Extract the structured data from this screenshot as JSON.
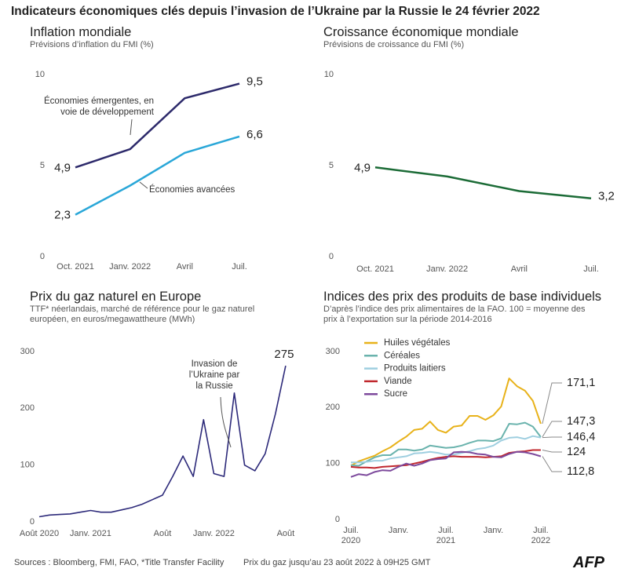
{
  "title": "Indicateurs économiques clés depuis l’invasion de l’Ukraine par la Russie le 24 février 2022",
  "sources": "Sources : Bloomberg, FMI, FAO, *Title Transfer Facility",
  "note": "Prix du gaz jusqu’au 23 août 2022 à 09H25 GMT",
  "logo": "AFP",
  "chart_data": [
    {
      "type": "line",
      "title": "Inflation mondiale",
      "subtitle": "Prévisions d’inflation du FMI (%)",
      "categories": [
        "Oct. 2021",
        "Janv. 2022",
        "Avril",
        "Juil."
      ],
      "ylim": [
        0,
        10
      ],
      "yticks": [
        0,
        5,
        10
      ],
      "series": [
        {
          "name": "Économies émergentes, en voie de développement",
          "color": "#2d2a6b",
          "values": [
            4.9,
            5.9,
            8.7,
            9.5
          ],
          "value_labels": [
            "4,9",
            null,
            null,
            "9,5"
          ]
        },
        {
          "name": "Économies avancées",
          "color": "#2aa7d8",
          "values": [
            2.3,
            3.9,
            5.7,
            6.6
          ],
          "value_labels": [
            "2,3",
            null,
            null,
            "6,6"
          ]
        }
      ]
    },
    {
      "type": "line",
      "title": "Croissance économique mondiale",
      "subtitle": "Prévisions de croissance du FMI (%)",
      "categories": [
        "Oct. 2021",
        "Janv. 2022",
        "Avril",
        "Juil."
      ],
      "ylim": [
        0,
        10
      ],
      "yticks": [
        0,
        5,
        10
      ],
      "series": [
        {
          "color": "#1b6b36",
          "values": [
            4.9,
            4.4,
            3.6,
            3.2
          ],
          "value_labels": [
            "4,9",
            null,
            null,
            "3,2"
          ]
        }
      ]
    },
    {
      "type": "line",
      "title": "Prix du gaz naturel en Europe",
      "subtitle": "TTF* néerlandais, marché de référence pour le gaz naturel européen, en euros/megawattheure (MWh)",
      "annotation": "Invasion de l’Ukraine par la Russie",
      "x": [
        "2020-08",
        "2020-09",
        "2020-10",
        "2020-11",
        "2020-12",
        "2021-01",
        "2021-02",
        "2021-03",
        "2021-04",
        "2021-05",
        "2021-06",
        "2021-07",
        "2021-08",
        "2021-09",
        "2021-10",
        "2021-11",
        "2021-12",
        "2022-01",
        "2022-02",
        "2022-03",
        "2022-04",
        "2022-05",
        "2022-06",
        "2022-07",
        "2022-08"
      ],
      "values": [
        9,
        12,
        13,
        14,
        17,
        20,
        17,
        17,
        21,
        25,
        31,
        39,
        47,
        80,
        116,
        80,
        180,
        85,
        80,
        227,
        100,
        90,
        120,
        190,
        275
      ],
      "color": "#2d2a7a",
      "ylim": [
        0,
        300
      ],
      "yticks": [
        0,
        100,
        200,
        300
      ],
      "xticks": [
        {
          "value": "2020-08",
          "label": "Août 2020"
        },
        {
          "value": "2021-01",
          "label": "Janv. 2021"
        },
        {
          "value": "2021-08",
          "label": "Août"
        },
        {
          "value": "2022-01",
          "label": "Janv. 2022"
        },
        {
          "value": "2022-08",
          "label": "Août"
        }
      ]
    },
    {
      "type": "line",
      "title": "Indices des prix des produits de base individuels",
      "subtitle": "D’après l’indice des prix alimentaires de la FAO. 100 = moyenne des prix à l’exportation sur la période 2014-2016",
      "x": [
        "2020-07",
        "2020-08",
        "2020-09",
        "2020-10",
        "2020-11",
        "2020-12",
        "2021-01",
        "2021-02",
        "2021-03",
        "2021-04",
        "2021-05",
        "2021-06",
        "2021-07",
        "2021-08",
        "2021-09",
        "2021-10",
        "2021-11",
        "2021-12",
        "2022-01",
        "2022-02",
        "2022-03",
        "2022-04",
        "2022-05",
        "2022-06",
        "2022-07"
      ],
      "ylim": [
        0,
        300
      ],
      "yticks": [
        0,
        100,
        200,
        300
      ],
      "xticks": [
        {
          "value": "2020-07",
          "label": "Juil. 2020"
        },
        {
          "value": "2021-01",
          "label": "Janv."
        },
        {
          "value": "2021-07",
          "label": "Juil. 2021"
        },
        {
          "value": "2022-01",
          "label": "Janv."
        },
        {
          "value": "2022-07",
          "label": "Juil. 2022"
        }
      ],
      "series": [
        {
          "name": "Huiles végétales",
          "color": "#e8b21a",
          "values": [
            96,
            104,
            109,
            114,
            122,
            129,
            139,
            148,
            160,
            162,
            175,
            160,
            155,
            166,
            168,
            185,
            185,
            178,
            186,
            202,
            252,
            238,
            230,
            212,
            171.1
          ],
          "value_labels": [
            null,
            null,
            null,
            null,
            null,
            null,
            null,
            null,
            null,
            null,
            null,
            null,
            null,
            null,
            null,
            null,
            null,
            null,
            null,
            null,
            null,
            null,
            null,
            null,
            "171,1"
          ]
        },
        {
          "name": "Céréales",
          "color": "#6ab3ad",
          "values": [
            97,
            96,
            104,
            111,
            115,
            115,
            125,
            125,
            123,
            125,
            132,
            130,
            128,
            129,
            132,
            137,
            141,
            141,
            140,
            145,
            171,
            170,
            173,
            166,
            147.3
          ],
          "value_labels": [
            null,
            null,
            null,
            null,
            null,
            null,
            null,
            null,
            null,
            null,
            null,
            null,
            null,
            null,
            null,
            null,
            null,
            null,
            null,
            null,
            null,
            null,
            null,
            null,
            "147,3"
          ]
        },
        {
          "name": "Produits laitiers",
          "color": "#9fcfe0",
          "values": [
            102,
            102,
            103,
            105,
            105,
            109,
            111,
            113,
            118,
            119,
            121,
            119,
            116,
            116,
            119,
            122,
            126,
            128,
            132,
            141,
            146,
            147,
            144,
            149,
            146.4
          ],
          "value_labels": [
            null,
            null,
            null,
            null,
            null,
            null,
            null,
            null,
            null,
            null,
            null,
            null,
            null,
            null,
            null,
            null,
            null,
            null,
            null,
            null,
            null,
            null,
            null,
            null,
            "146,4"
          ]
        },
        {
          "name": "Viande",
          "color": "#c0272d",
          "values": [
            94,
            93,
            93,
            92,
            94,
            95,
            96,
            97,
            100,
            103,
            107,
            110,
            112,
            113,
            112,
            112,
            112,
            111,
            112,
            113,
            119,
            121,
            122,
            124,
            124
          ]
        },
        {
          "name": "Sucre",
          "color": "#7d4a9c",
          "values": [
            76,
            81,
            79,
            85,
            88,
            87,
            94,
            100,
            96,
            100,
            106,
            108,
            109,
            120,
            121,
            120,
            117,
            116,
            112,
            111,
            117,
            121,
            120,
            117,
            112.8
          ],
          "value_labels": [
            null,
            null,
            null,
            null,
            null,
            null,
            null,
            null,
            null,
            null,
            null,
            null,
            null,
            null,
            null,
            null,
            null,
            null,
            null,
            null,
            null,
            null,
            null,
            null,
            "112,8"
          ]
        }
      ]
    }
  ]
}
